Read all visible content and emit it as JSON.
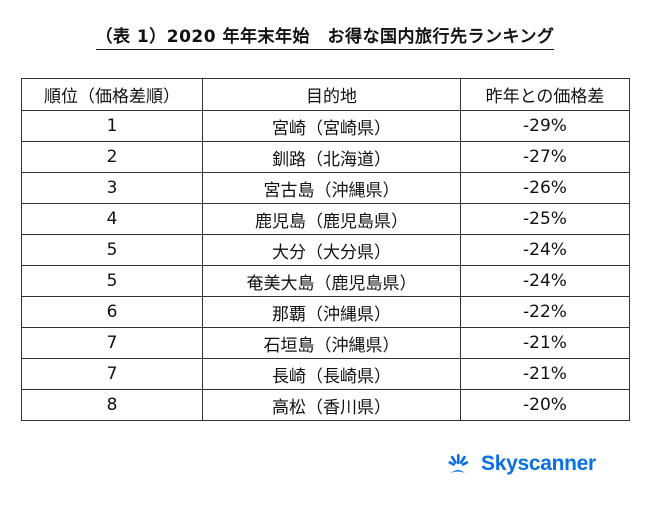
{
  "title": "（表 1）2020 年年末年始　お得な国内旅行先ランキング",
  "table": {
    "headers": [
      "順位（価格差順）",
      "目的地",
      "昨年との価格差"
    ],
    "rows": [
      [
        "1",
        "宮崎（宮崎県）",
        "-29%"
      ],
      [
        "2",
        "釧路（北海道）",
        "-27%"
      ],
      [
        "3",
        "宮古島（沖縄県）",
        "-26%"
      ],
      [
        "4",
        "鹿児島（鹿児島県）",
        "-25%"
      ],
      [
        "5",
        "大分（大分県）",
        "-24%"
      ],
      [
        "5",
        "奄美大島（鹿児島県）",
        "-24%"
      ],
      [
        "6",
        "那覇（沖縄県）",
        "-22%"
      ],
      [
        "7",
        "石垣島（沖縄県）",
        "-21%"
      ],
      [
        "7",
        "長崎（長崎県）",
        "-21%"
      ],
      [
        "8",
        "高松（香川県）",
        "-20%"
      ]
    ]
  },
  "logo": {
    "text": "Skyscanner",
    "icon": "sunrise-icon",
    "color": "#0770e3"
  }
}
